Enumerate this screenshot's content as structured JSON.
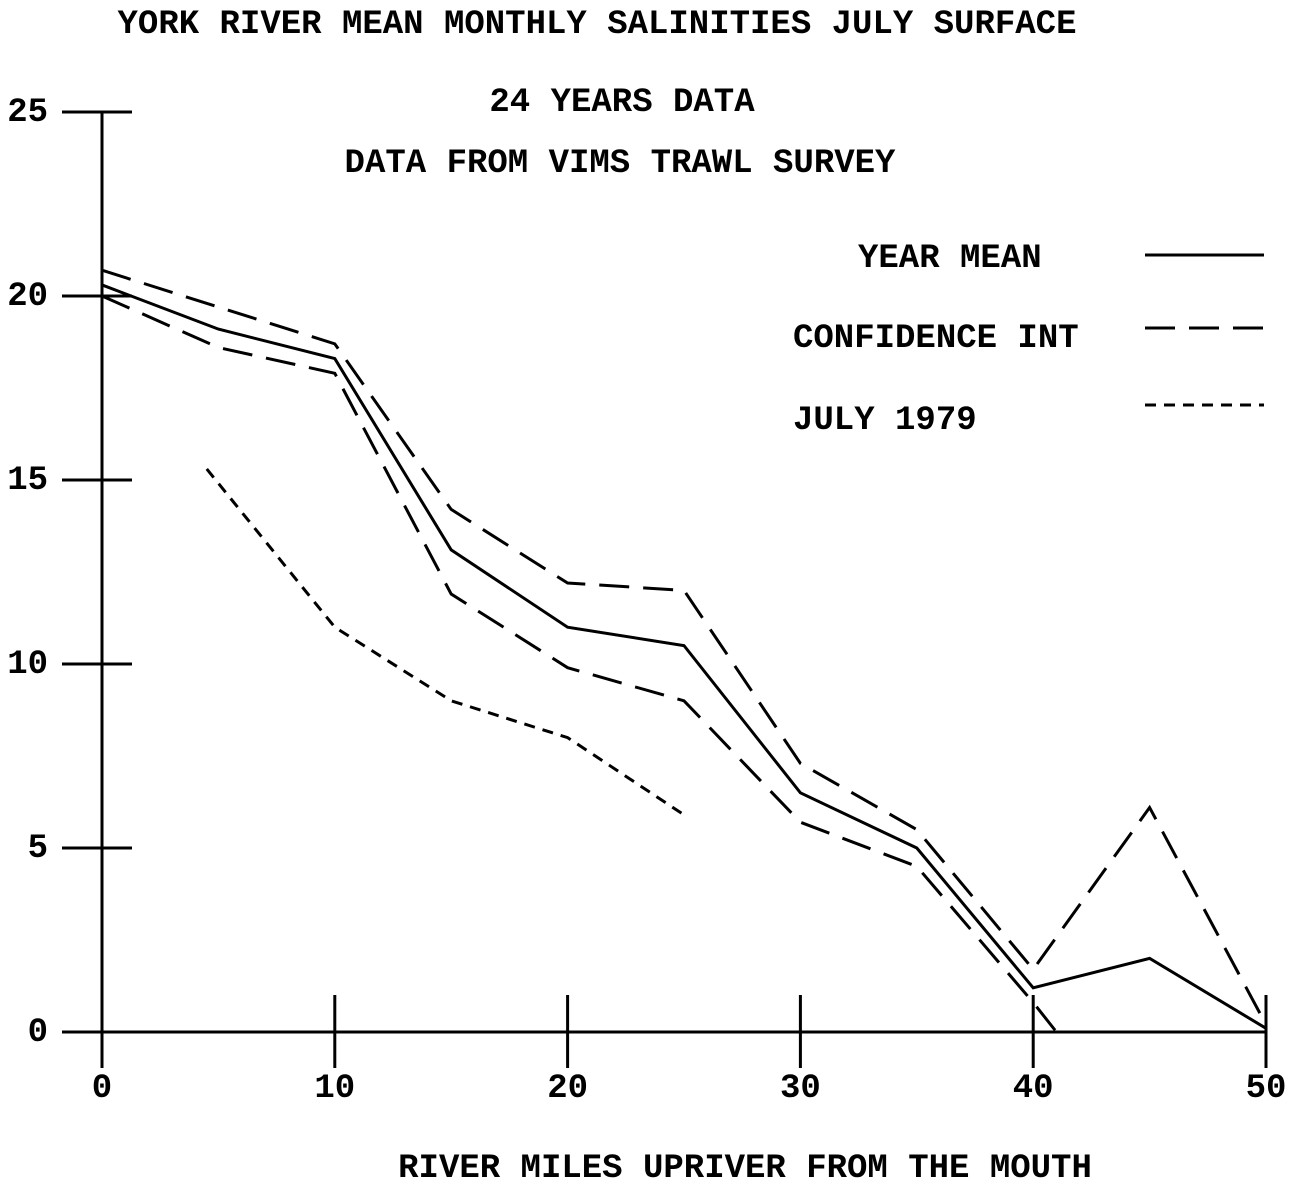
{
  "chart_data": {
    "type": "line",
    "title": "YORK RIVER MEAN MONTHLY SALINITIES JULY SURFACE",
    "subtitles": [
      "24 YEARS DATA",
      "DATA FROM VIMS TRAWL SURVEY"
    ],
    "x_label": "RIVER MILES UPRIVER FROM THE MOUTH",
    "xlim": [
      0,
      50
    ],
    "xticks": [
      0,
      10,
      20,
      30,
      40,
      50
    ],
    "ylim": [
      0,
      25
    ],
    "yticks": [
      0,
      5,
      10,
      15,
      20,
      25
    ],
    "legend": "upper right",
    "series": [
      {
        "name": "YEAR MEAN",
        "color": "#000000",
        "linestyle": "solid",
        "x": [
          0,
          5,
          10,
          15,
          20,
          25,
          30,
          35,
          40,
          45,
          50
        ],
        "values": [
          20.3,
          19.1,
          18.3,
          13.1,
          11.0,
          10.5,
          6.5,
          5.0,
          1.2,
          2.0,
          0.1
        ]
      },
      {
        "name": "CONFIDENCE INT",
        "color": "#000000",
        "linestyle": "dashed",
        "x": [
          0,
          5,
          10,
          15,
          20,
          25,
          30,
          35,
          40,
          45,
          50
        ],
        "values": [
          20.7,
          19.7,
          18.7,
          14.2,
          12.2,
          12.0,
          7.3,
          5.5,
          1.7,
          6.1,
          0.2
        ]
      },
      {
        "color": "#000000",
        "linestyle": "dashed",
        "x": [
          0,
          5,
          10,
          15,
          20,
          25,
          30,
          35,
          40,
          41
        ],
        "values": [
          20.0,
          18.6,
          17.9,
          11.9,
          9.9,
          9.0,
          5.7,
          4.5,
          0.8,
          0
        ]
      },
      {
        "name": "JULY 1979",
        "color": "#000000",
        "linestyle": "dotted",
        "x": [
          4.5,
          10,
          15,
          20,
          25
        ],
        "values": [
          15.3,
          11.0,
          9.0,
          8.0,
          5.9
        ]
      }
    ]
  }
}
